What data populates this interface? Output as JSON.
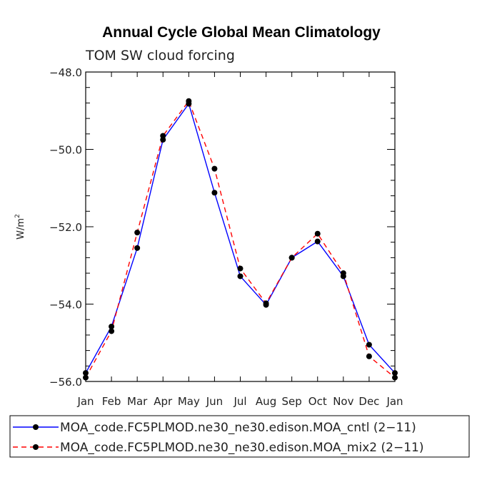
{
  "chart_data": {
    "type": "line",
    "title": "Annual Cycle Global Mean Climatology",
    "subtitle": "TOM SW cloud forcing",
    "ylabel": "W/m",
    "ylabel_superscript": "2",
    "xlabel": "",
    "categories": [
      "Jan",
      "Feb",
      "Mar",
      "Apr",
      "May",
      "Jun",
      "Jul",
      "Aug",
      "Sep",
      "Oct",
      "Nov",
      "Dec",
      "Jan"
    ],
    "ylim": [
      -56.0,
      -48.0
    ],
    "yticks_major": [
      -56.0,
      -54.0,
      -52.0,
      -50.0,
      -48.0
    ],
    "ytick_labels": [
      "−56.0",
      "−54.0",
      "−52.0",
      "−50.0",
      "−48.0"
    ],
    "series": [
      {
        "name": "MOA_code.FC5PLMOD.ne30_ne30.edison.MOA_cntl (2−11)",
        "color": "#0000ff",
        "style": "solid",
        "values": [
          -55.78,
          -54.58,
          -52.55,
          -49.75,
          -48.82,
          -51.12,
          -53.28,
          -54.02,
          -52.8,
          -52.38,
          -53.28,
          -55.05,
          -55.78
        ]
      },
      {
        "name": "MOA_code.FC5PLMOD.ne30_ne30.edison.MOA_mix2 (2−11)",
        "color": "#ff0000",
        "style": "dashed",
        "values": [
          -55.9,
          -54.7,
          -52.15,
          -49.65,
          -48.75,
          -50.5,
          -53.08,
          -53.98,
          -52.8,
          -52.18,
          -53.2,
          -55.35,
          -55.9
        ]
      }
    ]
  }
}
